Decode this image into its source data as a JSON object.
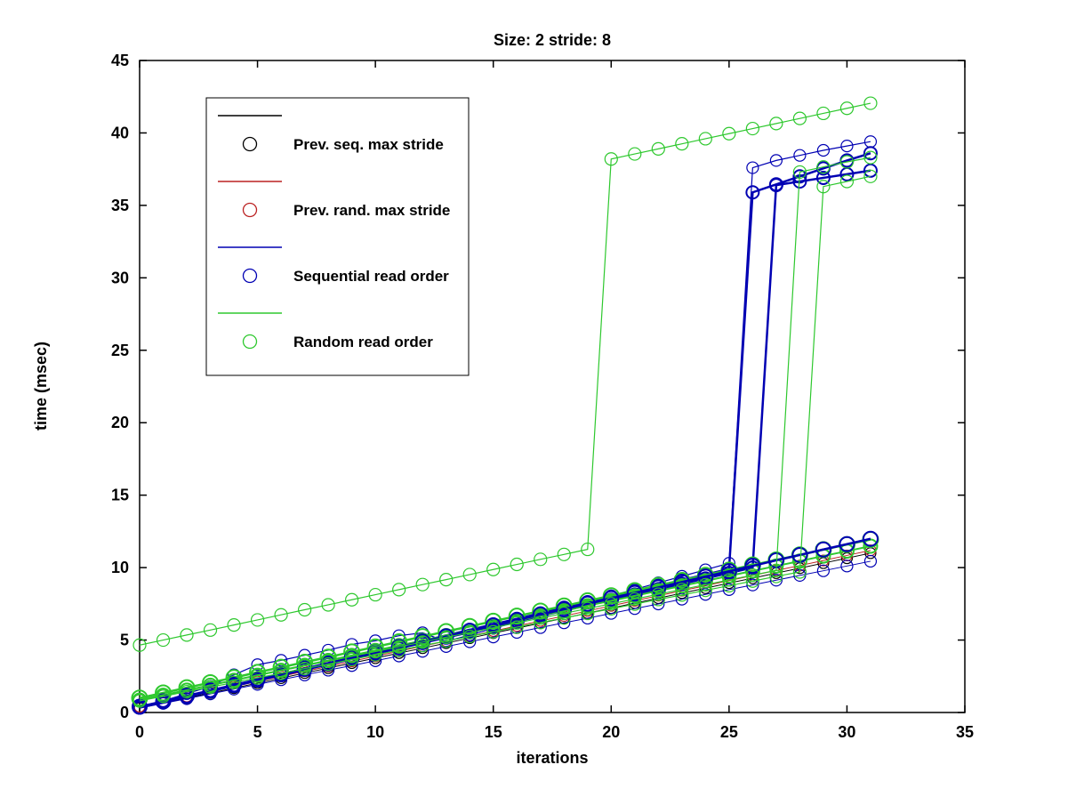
{
  "title": "Size: 2 stride: 8",
  "chart_data": {
    "type": "line",
    "title": "Size: 2 stride: 8",
    "xlabel": "iterations",
    "ylabel": "time (msec)",
    "xlim": [
      0,
      35
    ],
    "ylim": [
      0,
      45
    ],
    "xticks": [
      0,
      5,
      10,
      15,
      20,
      25,
      30,
      35
    ],
    "yticks": [
      0,
      5,
      10,
      15,
      20,
      25,
      30,
      35,
      40,
      45
    ],
    "grid": false,
    "marker": "open-circle",
    "background": "#ffffff",
    "legend": {
      "position": "upper-left",
      "entries": [
        {
          "label": "Prev. seq. max stride",
          "color": "#000000"
        },
        {
          "label": "Prev. rand. max stride",
          "color": "#bb2222"
        },
        {
          "label": "Sequential read order",
          "color": "#0000b3"
        },
        {
          "label": "Random read order",
          "color": "#2ec82e"
        }
      ]
    },
    "x": [
      0,
      1,
      2,
      3,
      4,
      5,
      6,
      7,
      8,
      9,
      10,
      11,
      12,
      13,
      14,
      15,
      16,
      17,
      18,
      19,
      20,
      21,
      22,
      23,
      24,
      25,
      26,
      27,
      28,
      29,
      30,
      31
    ],
    "series": [
      {
        "name": "prev-seq-max-stride",
        "color": "#000000",
        "line_width": 1,
        "marker_size": 6,
        "values": [
          0.3,
          0.65,
          0.99,
          1.34,
          1.68,
          2.03,
          2.37,
          2.72,
          3.06,
          3.41,
          3.75,
          4.1,
          4.44,
          4.79,
          5.13,
          5.48,
          5.82,
          6.17,
          6.51,
          6.86,
          7.2,
          7.55,
          7.89,
          8.24,
          8.58,
          8.93,
          9.27,
          9.62,
          9.96,
          10.31,
          10.65,
          11.0
        ]
      },
      {
        "name": "prev-rand-max-stride",
        "color": "#bb2222",
        "line_width": 1,
        "marker_size": 6,
        "values": [
          0.4,
          0.75,
          1.1,
          1.44,
          1.79,
          2.14,
          2.49,
          2.84,
          3.18,
          3.53,
          3.88,
          4.23,
          4.58,
          4.92,
          5.27,
          5.62,
          5.97,
          6.32,
          6.66,
          7.01,
          7.36,
          7.71,
          8.06,
          8.4,
          8.75,
          9.1,
          9.45,
          9.8,
          10.14,
          10.49,
          10.84,
          11.19
        ]
      },
      {
        "name": "sequential-low",
        "color": "#0000b3",
        "line_width": 1,
        "marker_size": 6.5,
        "values": [
          0.3,
          0.63,
          0.95,
          1.28,
          1.61,
          1.94,
          2.26,
          2.59,
          2.92,
          3.24,
          3.57,
          3.9,
          4.22,
          4.55,
          4.88,
          5.21,
          5.53,
          5.86,
          6.19,
          6.51,
          6.84,
          7.17,
          7.49,
          7.82,
          8.15,
          8.48,
          8.8,
          9.13,
          9.46,
          9.78,
          10.11,
          10.44
        ]
      },
      {
        "name": "sequential-bump-jump26",
        "color": "#0000b3",
        "line_width": 1.2,
        "marker_size": 6.5,
        "values": [
          0.35,
          0.8,
          1.3,
          1.8,
          2.6,
          3.3,
          3.6,
          3.95,
          4.3,
          4.7,
          4.95,
          5.3,
          5.5,
          4.9,
          5.35,
          5.8,
          6.25,
          6.7,
          7.15,
          7.6,
          8.05,
          8.5,
          8.95,
          9.4,
          9.85,
          10.3,
          37.6,
          38.1,
          38.45,
          38.8,
          39.1,
          39.4
        ]
      },
      {
        "name": "sequential-thick-jump26",
        "color": "#0000b3",
        "line_width": 2.5,
        "marker_size": 7,
        "values": [
          0.35,
          0.73,
          1.11,
          1.5,
          1.88,
          2.26,
          2.64,
          3.02,
          3.41,
          3.79,
          4.17,
          4.55,
          4.93,
          5.32,
          5.7,
          6.08,
          6.46,
          6.84,
          7.23,
          7.61,
          7.99,
          8.37,
          8.75,
          9.14,
          9.52,
          9.9,
          35.9,
          36.45,
          37.0,
          37.55,
          38.1,
          38.6
        ]
      },
      {
        "name": "sequential-thick-jump27",
        "color": "#0000b3",
        "line_width": 2.5,
        "marker_size": 7,
        "values": [
          0.35,
          0.72,
          1.09,
          1.46,
          1.83,
          2.21,
          2.58,
          2.95,
          3.32,
          3.69,
          4.06,
          4.43,
          4.8,
          5.17,
          5.54,
          5.92,
          6.29,
          6.66,
          7.03,
          7.4,
          7.77,
          8.14,
          8.51,
          8.88,
          9.25,
          9.63,
          10.0,
          36.4,
          36.65,
          36.9,
          37.15,
          37.4
        ]
      },
      {
        "name": "random-low-a",
        "color": "#2ec82e",
        "line_width": 2,
        "marker_size": 7.5,
        "values": [
          0.85,
          1.19,
          1.54,
          1.88,
          2.22,
          2.57,
          2.91,
          3.25,
          3.59,
          3.94,
          4.28,
          4.62,
          4.97,
          5.31,
          5.65,
          6.0,
          6.34,
          6.68,
          7.02,
          7.37,
          7.71,
          8.05,
          8.4,
          8.74,
          9.08,
          9.43,
          9.77,
          10.11,
          10.45,
          10.8,
          11.14,
          11.48
        ]
      },
      {
        "name": "random-low-b",
        "color": "#2ec82e",
        "line_width": 2.5,
        "marker_size": 8.5,
        "values": [
          1.0,
          1.35,
          1.71,
          2.06,
          2.41,
          2.77,
          3.12,
          3.47,
          3.82,
          4.18,
          4.53,
          4.88,
          5.24,
          5.59,
          5.94,
          6.3,
          6.65,
          7.0,
          7.35,
          7.71,
          8.06,
          8.41,
          8.77,
          9.12,
          9.47,
          9.83,
          10.18,
          10.53,
          10.88,
          11.24,
          11.59,
          11.94
        ]
      },
      {
        "name": "sequential-thick-top",
        "color": "#0000b3",
        "line_width": 2.5,
        "marker_size": 8,
        "values": [
          0.4,
          0.77,
          1.15,
          1.52,
          1.9,
          2.27,
          2.64,
          3.02,
          3.39,
          3.77,
          4.14,
          4.51,
          4.89,
          5.26,
          5.64,
          6.01,
          6.38,
          6.76,
          7.13,
          7.51,
          7.88,
          8.25,
          8.63,
          9.0,
          9.38,
          9.75,
          10.12,
          10.5,
          10.87,
          11.25,
          11.62,
          11.99
        ]
      },
      {
        "name": "random-jump28",
        "color": "#2ec82e",
        "line_width": 1.2,
        "marker_size": 7,
        "values": [
          0.9,
          1.23,
          1.56,
          1.89,
          2.22,
          2.55,
          2.88,
          3.21,
          3.54,
          3.87,
          4.2,
          4.53,
          4.86,
          5.19,
          5.52,
          5.85,
          6.18,
          6.51,
          6.84,
          7.17,
          7.5,
          7.83,
          8.16,
          8.49,
          8.82,
          9.15,
          9.48,
          9.81,
          37.3,
          37.65,
          38.0,
          38.3
        ]
      },
      {
        "name": "random-jump29",
        "color": "#2ec82e",
        "line_width": 1.2,
        "marker_size": 7,
        "values": [
          0.8,
          1.12,
          1.44,
          1.75,
          2.07,
          2.39,
          2.71,
          3.03,
          3.34,
          3.66,
          3.98,
          4.3,
          4.62,
          4.93,
          5.25,
          5.57,
          5.89,
          6.21,
          6.52,
          6.84,
          7.16,
          7.48,
          7.8,
          8.11,
          8.43,
          8.75,
          9.07,
          9.39,
          9.7,
          36.3,
          36.65,
          37.0
        ]
      },
      {
        "name": "random-top-jump20",
        "color": "#2ec82e",
        "line_width": 1.2,
        "marker_size": 7,
        "values": [
          4.65,
          5.0,
          5.35,
          5.69,
          6.04,
          6.39,
          6.74,
          7.09,
          7.43,
          7.78,
          8.13,
          8.48,
          8.83,
          9.17,
          9.52,
          9.87,
          10.22,
          10.57,
          10.91,
          11.26,
          38.2,
          38.55,
          38.9,
          39.25,
          39.6,
          39.95,
          40.3,
          40.65,
          41.0,
          41.35,
          41.7,
          42.05
        ]
      }
    ]
  }
}
